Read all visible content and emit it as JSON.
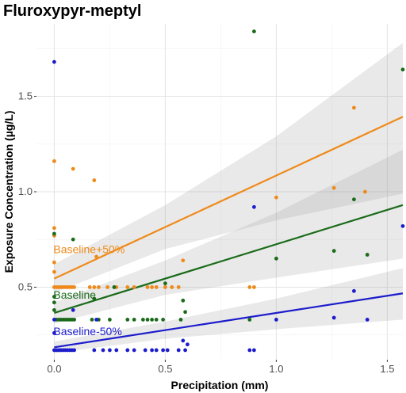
{
  "chart_data": {
    "type": "scatter",
    "title": "Fluroxypyr-meptyl",
    "xlabel": "Precipitation (mm)",
    "ylabel": "Exposure Concentration (µg/L)",
    "xlim": [
      -0.08,
      1.57
    ],
    "ylim": [
      0.12,
      1.88
    ],
    "x_ticks": [
      0.0,
      0.5,
      1.0,
      1.5
    ],
    "x_tick_labels": [
      "0.0",
      "0.5",
      "1.0",
      "1.5"
    ],
    "y_ticks": [
      0.5,
      1.0,
      1.5
    ],
    "y_tick_labels": [
      "0.5",
      "1.0",
      "1.5"
    ],
    "grid": true,
    "legend": "inline-labels",
    "series": [
      {
        "name": "Baseline+50%",
        "color": "#ef8a1a",
        "fit": {
          "intercept": 0.545,
          "slope": 0.54
        },
        "band": [
          [
            0.0,
            0.47,
            0.62
          ],
          [
            0.5,
            0.7,
            0.93
          ],
          [
            1.0,
            0.85,
            1.29
          ],
          [
            1.57,
            0.99,
            1.78
          ]
        ],
        "points": [
          [
            0,
            1.16
          ],
          [
            0,
            0.81
          ],
          [
            0,
            0.77
          ],
          [
            0,
            0.63
          ],
          [
            0,
            0.58
          ],
          [
            0,
            0.5
          ],
          [
            0.01,
            0.5
          ],
          [
            0.02,
            0.5
          ],
          [
            0.03,
            0.5
          ],
          [
            0.04,
            0.5
          ],
          [
            0.05,
            0.5
          ],
          [
            0.06,
            0.5
          ],
          [
            0.07,
            0.5
          ],
          [
            0.08,
            0.5
          ],
          [
            0.09,
            0.5
          ],
          [
            0.085,
            1.12
          ],
          [
            0.18,
            1.06
          ],
          [
            0.19,
            0.66
          ],
          [
            0.16,
            0.5
          ],
          [
            0.18,
            0.5
          ],
          [
            0.2,
            0.5
          ],
          [
            0.24,
            0.5
          ],
          [
            0.28,
            0.5
          ],
          [
            0.33,
            0.5
          ],
          [
            0.36,
            0.5
          ],
          [
            0.42,
            0.5
          ],
          [
            0.44,
            0.5
          ],
          [
            0.46,
            0.5
          ],
          [
            0.5,
            0.5
          ],
          [
            0.53,
            0.5
          ],
          [
            0.56,
            0.5
          ],
          [
            0.58,
            0.64
          ],
          [
            0.88,
            0.5
          ],
          [
            0.9,
            0.5
          ],
          [
            1.0,
            0.97
          ],
          [
            1.26,
            1.02
          ],
          [
            1.35,
            1.44
          ],
          [
            1.4,
            1.0
          ]
        ]
      },
      {
        "name": "Baseline",
        "color": "#1a6b1a",
        "fit": {
          "intercept": 0.365,
          "slope": 0.36
        },
        "band": [
          [
            0.0,
            0.31,
            0.42
          ],
          [
            0.5,
            0.46,
            0.64
          ],
          [
            1.0,
            0.55,
            0.89
          ],
          [
            1.57,
            0.65,
            1.22
          ]
        ],
        "points": [
          [
            0,
            0.78
          ],
          [
            0,
            0.45
          ],
          [
            0,
            0.42
          ],
          [
            0,
            0.38
          ],
          [
            0.01,
            0.33
          ],
          [
            0.02,
            0.33
          ],
          [
            0.03,
            0.33
          ],
          [
            0.04,
            0.33
          ],
          [
            0.05,
            0.33
          ],
          [
            0.06,
            0.33
          ],
          [
            0.07,
            0.33
          ],
          [
            0.08,
            0.33
          ],
          [
            0.09,
            0.33
          ],
          [
            0.085,
            0.75
          ],
          [
            0.17,
            0.33
          ],
          [
            0.18,
            0.44
          ],
          [
            0.2,
            0.33
          ],
          [
            0.25,
            0.33
          ],
          [
            0.27,
            0.5
          ],
          [
            0.33,
            0.33
          ],
          [
            0.36,
            0.33
          ],
          [
            0.4,
            0.33
          ],
          [
            0.42,
            0.33
          ],
          [
            0.44,
            0.33
          ],
          [
            0.46,
            0.33
          ],
          [
            0.49,
            0.33
          ],
          [
            0.5,
            0.52
          ],
          [
            0.57,
            0.33
          ],
          [
            0.58,
            0.43
          ],
          [
            0.59,
            0.37
          ],
          [
            0.88,
            0.33
          ],
          [
            0.9,
            1.84
          ],
          [
            1.0,
            0.65
          ],
          [
            1.26,
            0.69
          ],
          [
            1.35,
            0.96
          ],
          [
            1.41,
            0.67
          ],
          [
            1.57,
            1.64
          ]
        ]
      },
      {
        "name": "Baseline-50%",
        "color": "#1c1ccc",
        "fit": {
          "intercept": 0.185,
          "slope": 0.18
        },
        "band": [
          [
            0.0,
            0.155,
            0.215
          ],
          [
            0.5,
            0.23,
            0.32
          ],
          [
            1.0,
            0.28,
            0.44
          ],
          [
            1.57,
            0.33,
            0.6
          ]
        ],
        "points": [
          [
            0,
            1.68
          ],
          [
            0,
            0.33
          ],
          [
            0,
            0.26
          ],
          [
            0,
            0.17
          ],
          [
            0.01,
            0.17
          ],
          [
            0.02,
            0.17
          ],
          [
            0.03,
            0.17
          ],
          [
            0.04,
            0.17
          ],
          [
            0.05,
            0.17
          ],
          [
            0.06,
            0.17
          ],
          [
            0.07,
            0.17
          ],
          [
            0.08,
            0.17
          ],
          [
            0.09,
            0.17
          ],
          [
            0.085,
            0.38
          ],
          [
            0.18,
            0.17
          ],
          [
            0.19,
            0.33
          ],
          [
            0.22,
            0.17
          ],
          [
            0.25,
            0.17
          ],
          [
            0.28,
            0.17
          ],
          [
            0.33,
            0.17
          ],
          [
            0.36,
            0.17
          ],
          [
            0.41,
            0.17
          ],
          [
            0.44,
            0.17
          ],
          [
            0.46,
            0.17
          ],
          [
            0.49,
            0.17
          ],
          [
            0.51,
            0.17
          ],
          [
            0.56,
            0.17
          ],
          [
            0.58,
            0.22
          ],
          [
            0.59,
            0.17
          ],
          [
            0.6,
            0.2
          ],
          [
            0.88,
            0.17
          ],
          [
            0.9,
            0.17
          ],
          [
            0.9,
            0.92
          ],
          [
            1.0,
            0.33
          ],
          [
            1.26,
            0.34
          ],
          [
            1.35,
            0.48
          ],
          [
            1.41,
            0.33
          ],
          [
            1.57,
            0.82
          ]
        ]
      }
    ]
  }
}
